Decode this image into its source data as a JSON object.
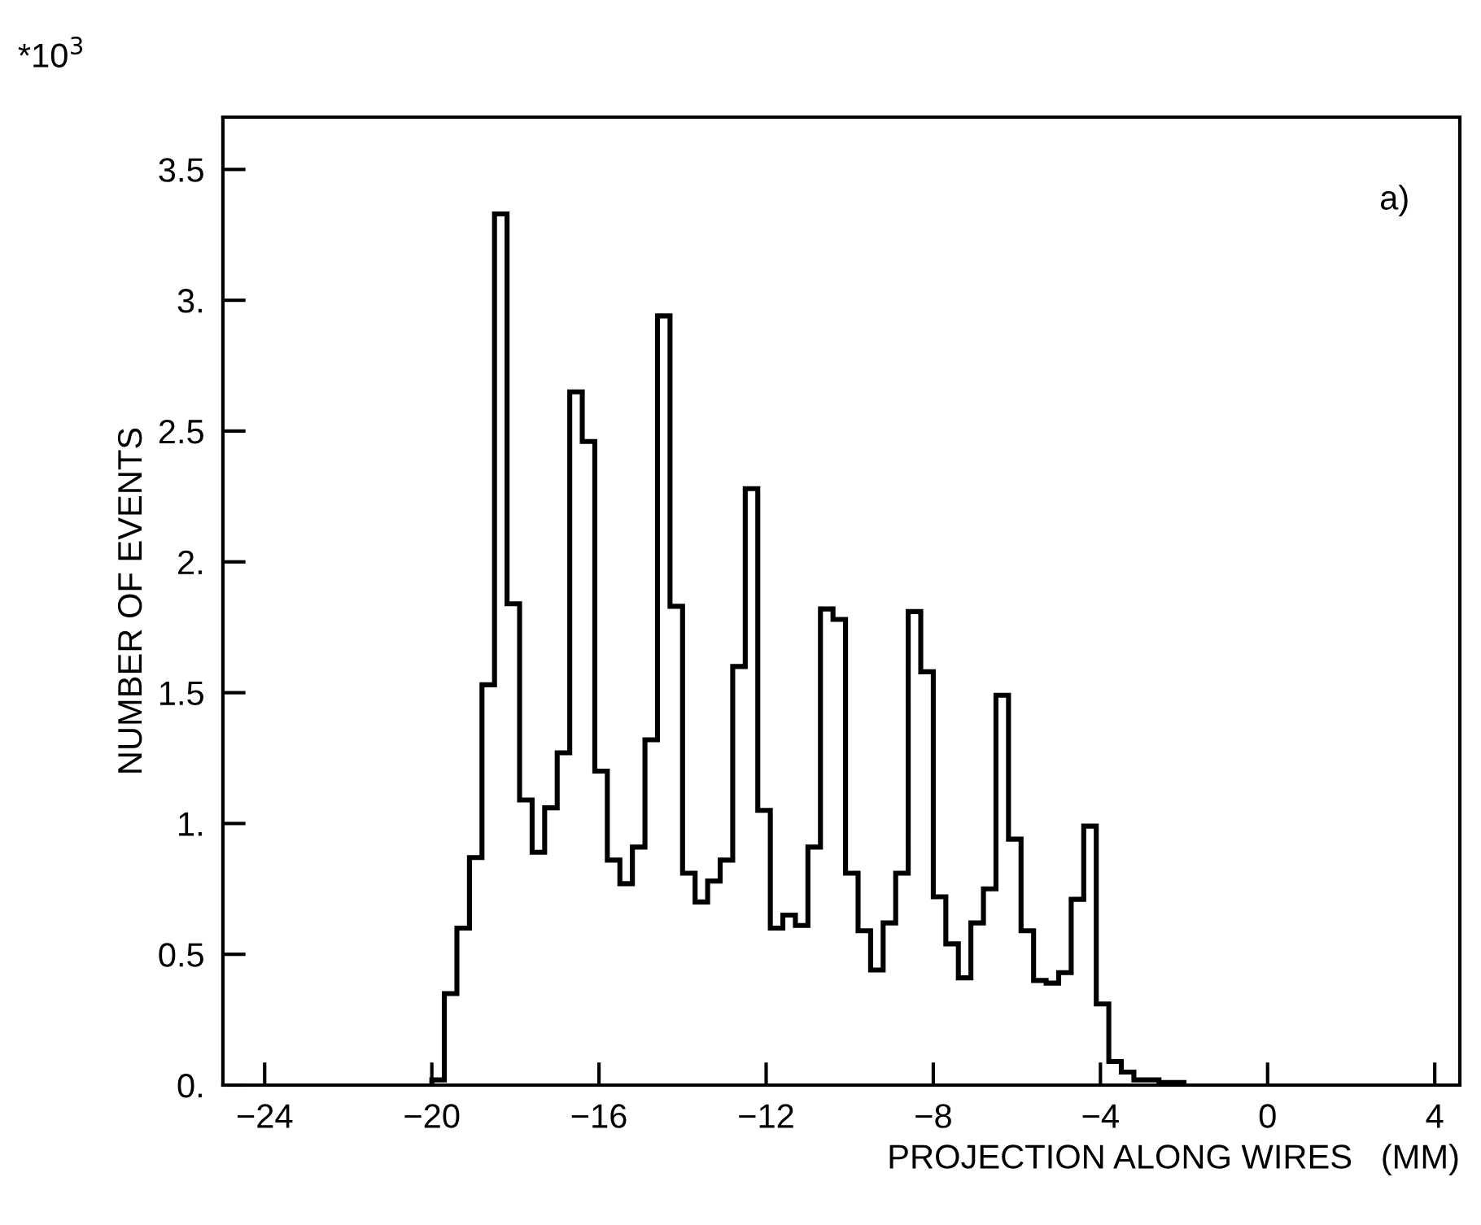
{
  "chart_data": {
    "type": "histogram",
    "xlabel": "PROJECTION ALONG WIRES   (MM)",
    "ylabel": "NUMBER OF EVENTS",
    "annotations": [
      "a)",
      "*10$^{3}$"
    ],
    "bins": [
      -20.0,
      -19.7,
      -19.4,
      -19.1,
      -18.8,
      -18.5,
      -18.2,
      -17.9,
      -17.6,
      -17.3,
      -17.0,
      -16.7,
      -16.4,
      -16.1,
      -15.8,
      -15.5,
      -15.2,
      -14.9,
      -14.6,
      -14.3,
      -14.0,
      -13.7,
      -13.4,
      -13.1,
      -12.8,
      -12.5,
      -12.2,
      -11.9,
      -11.6,
      -11.3,
      -11.0,
      -10.7,
      -10.4,
      -10.1,
      -9.8,
      -9.5,
      -9.2,
      -8.9,
      -8.6,
      -8.3,
      -8.0,
      -7.7,
      -7.4,
      -7.1,
      -6.8,
      -6.5,
      -6.2,
      -5.9,
      -5.6,
      -5.3,
      -5.0,
      -4.7,
      -4.4,
      -4.1,
      -3.8,
      -3.5,
      -3.2,
      -2.9,
      -2.6,
      -2.3,
      -2.0
    ],
    "values": [
      0.02,
      0.35,
      0.6,
      0.87,
      1.53,
      3.33,
      1.84,
      1.09,
      0.89,
      1.06,
      1.27,
      2.65,
      2.46,
      1.2,
      0.86,
      0.77,
      0.91,
      1.32,
      2.94,
      1.83,
      0.81,
      0.7,
      0.78,
      0.86,
      1.6,
      2.28,
      1.05,
      0.6,
      0.65,
      0.61,
      0.91,
      1.82,
      1.78,
      0.81,
      0.59,
      0.44,
      0.62,
      0.81,
      1.81,
      1.58,
      0.72,
      0.54,
      0.41,
      0.62,
      0.75,
      1.49,
      0.94,
      0.59,
      0.4,
      0.39,
      0.43,
      0.71,
      0.99,
      0.31,
      0.09,
      0.05,
      0.02,
      0.02,
      0.01,
      0.01
    ],
    "color": "#000000",
    "xlim": [
      -25,
      4.6
    ],
    "xticks": [
      {
        "value": -24,
        "label": "−24"
      },
      {
        "value": -20,
        "label": "−20"
      },
      {
        "value": -16,
        "label": "−16"
      },
      {
        "value": -12,
        "label": "−12"
      },
      {
        "value": -8,
        "label": "−8"
      },
      {
        "value": -4,
        "label": "−4"
      },
      0,
      4
    ],
    "ylim": [
      0,
      3.7
    ],
    "yticks": [
      {
        "value": 0,
        "label": "0."
      },
      0.5,
      {
        "value": 1,
        "label": "1."
      },
      1.5,
      {
        "value": 2,
        "label": "2."
      },
      2.5,
      {
        "value": 3,
        "label": "3."
      },
      3.5
    ],
    "grid": false,
    "legend": false
  }
}
